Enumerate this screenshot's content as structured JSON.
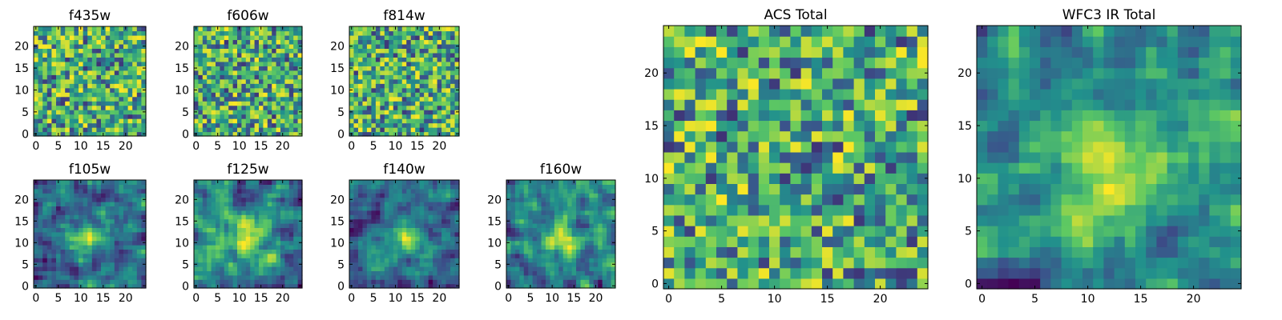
{
  "figure": {
    "colormap": [
      "#440154",
      "#3b528b",
      "#21918c",
      "#5ec962",
      "#fde725"
    ]
  },
  "chart_data": [
    {
      "type": "heatmap",
      "title": "f435w",
      "xlim": [
        0,
        24
      ],
      "ylim": [
        0,
        24
      ],
      "xticks": [
        "0",
        "5",
        "10",
        "15",
        "20"
      ],
      "yticks": [
        "0",
        "5",
        "10",
        "15",
        "20"
      ],
      "grid": 25,
      "pattern": "noise",
      "seed": 11
    },
    {
      "type": "heatmap",
      "title": "f606w",
      "xlim": [
        0,
        24
      ],
      "ylim": [
        0,
        24
      ],
      "xticks": [
        "0",
        "5",
        "10",
        "15",
        "20"
      ],
      "yticks": [
        "0",
        "5",
        "10",
        "15",
        "20"
      ],
      "grid": 25,
      "pattern": "noise",
      "seed": 23
    },
    {
      "type": "heatmap",
      "title": "f814w",
      "xlim": [
        0,
        24
      ],
      "ylim": [
        0,
        24
      ],
      "xticks": [
        "0",
        "5",
        "10",
        "15",
        "20"
      ],
      "yticks": [
        "0",
        "5",
        "10",
        "15",
        "20"
      ],
      "grid": 25,
      "pattern": "noise",
      "seed": 37
    },
    {
      "type": "heatmap",
      "title": "f105w",
      "xlim": [
        0,
        24
      ],
      "ylim": [
        0,
        24
      ],
      "xticks": [
        "0",
        "5",
        "10",
        "15",
        "20"
      ],
      "yticks": [
        "0",
        "5",
        "10",
        "15",
        "20"
      ],
      "grid": 25,
      "pattern": "blob",
      "seed": 41
    },
    {
      "type": "heatmap",
      "title": "f125w",
      "xlim": [
        0,
        24
      ],
      "ylim": [
        0,
        24
      ],
      "xticks": [
        "0",
        "5",
        "10",
        "15",
        "20"
      ],
      "yticks": [
        "0",
        "5",
        "10",
        "15",
        "20"
      ],
      "grid": 25,
      "pattern": "blob",
      "seed": 53
    },
    {
      "type": "heatmap",
      "title": "f140w",
      "xlim": [
        0,
        24
      ],
      "ylim": [
        0,
        24
      ],
      "xticks": [
        "0",
        "5",
        "10",
        "15",
        "20"
      ],
      "yticks": [
        "0",
        "5",
        "10",
        "15",
        "20"
      ],
      "grid": 25,
      "pattern": "blob",
      "seed": 67
    },
    {
      "type": "heatmap",
      "title": "f160w",
      "xlim": [
        0,
        24
      ],
      "ylim": [
        0,
        24
      ],
      "xticks": [
        "0",
        "5",
        "10",
        "15",
        "20"
      ],
      "yticks": [
        "0",
        "5",
        "10",
        "15",
        "20"
      ],
      "grid": 25,
      "pattern": "blob",
      "seed": 79
    },
    {
      "type": "heatmap",
      "title": "ACS Total",
      "xlim": [
        0,
        24
      ],
      "ylim": [
        0,
        24
      ],
      "xticks": [
        "0",
        "5",
        "10",
        "15",
        "20"
      ],
      "yticks": [
        "0",
        "5",
        "10",
        "15",
        "20"
      ],
      "grid": 25,
      "pattern": "noise",
      "seed": 83
    },
    {
      "type": "heatmap",
      "title": "WFC3 IR Total",
      "xlim": [
        0,
        24
      ],
      "ylim": [
        0,
        24
      ],
      "xticks": [
        "0",
        "5",
        "10",
        "15",
        "20"
      ],
      "yticks": [
        "0",
        "5",
        "10",
        "15",
        "20"
      ],
      "grid": 25,
      "pattern": "blob",
      "seed": 97
    }
  ]
}
